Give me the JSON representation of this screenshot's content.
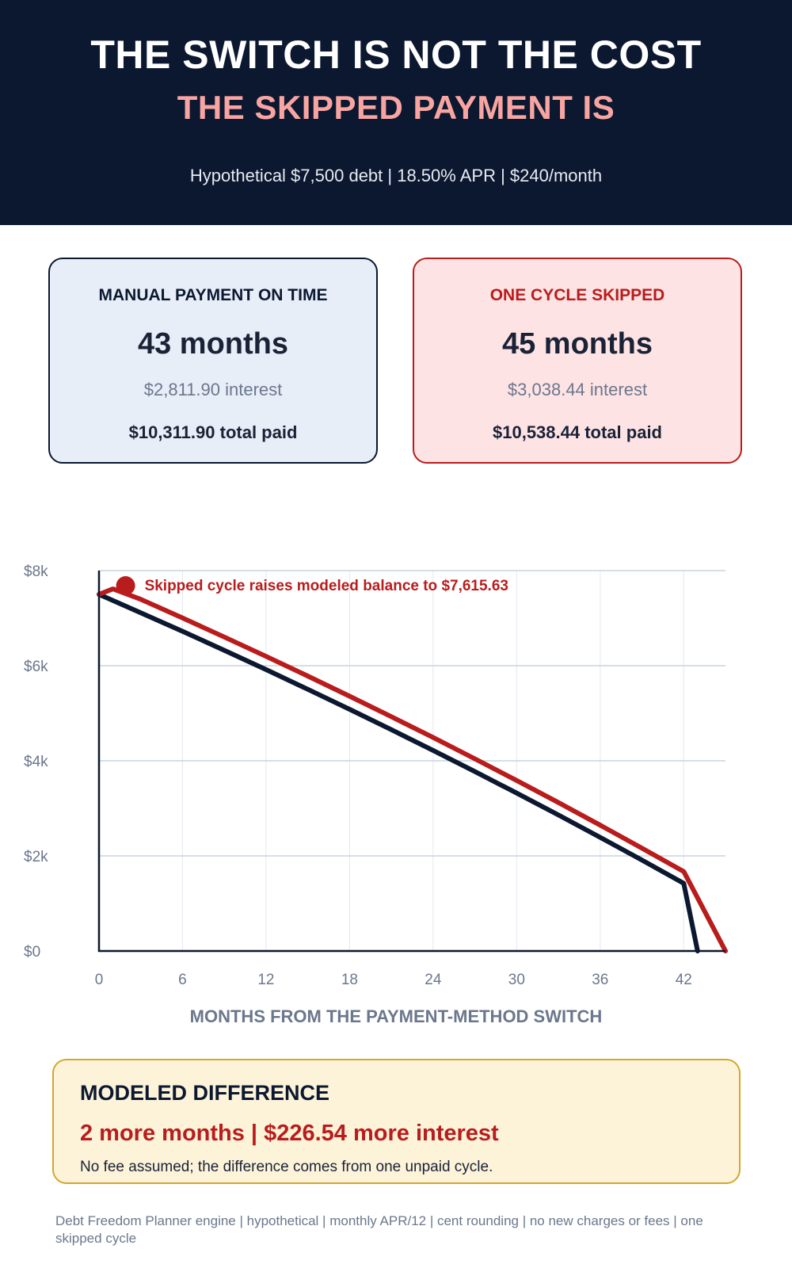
{
  "header": {
    "title": "THE SWITCH IS NOT THE COST",
    "subtitle": "THE SKIPPED PAYMENT IS",
    "assumptions": "Hypothetical $7,500 debt  |  18.50% APR  |  $240/month"
  },
  "cards": {
    "manual": {
      "label": "MANUAL PAYMENT ON TIME",
      "months": "43 months",
      "interest": "$2,811.90 interest",
      "total": "$10,311.90 total paid"
    },
    "skipped": {
      "label": "ONE CYCLE SKIPPED",
      "months": "45 months",
      "interest": "$3,038.44 interest",
      "total": "$10,538.44 total paid"
    }
  },
  "chart_data": {
    "type": "line",
    "xlabel": "MONTHS FROM THE PAYMENT-METHOD SWITCH",
    "ylabel": "",
    "xlim": [
      0,
      45
    ],
    "ylim": [
      0,
      8000
    ],
    "x_ticks": [
      0,
      6,
      12,
      18,
      24,
      30,
      36,
      42
    ],
    "y_ticks": [
      {
        "value": 0,
        "label": "$0"
      },
      {
        "value": 2000,
        "label": "$2k"
      },
      {
        "value": 4000,
        "label": "$4k"
      },
      {
        "value": 6000,
        "label": "$6k"
      },
      {
        "value": 8000,
        "label": "$8k"
      }
    ],
    "grid": true,
    "series": [
      {
        "key": "manual",
        "color": "#0b1830",
        "x": [
          0,
          3,
          6,
          9,
          12,
          15,
          18,
          21,
          24,
          27,
          30,
          33,
          36,
          39,
          42,
          43
        ],
        "values": [
          7500,
          7114,
          6723,
          6323,
          5918,
          5504,
          5084,
          4655,
          4219,
          3774,
          3321,
          2860,
          2390,
          1912,
          1424,
          0
        ]
      },
      {
        "key": "skipped",
        "color": "#b91c1c",
        "x": [
          0,
          1,
          3,
          6,
          9,
          12,
          15,
          18,
          21,
          24,
          27,
          30,
          33,
          36,
          39,
          42,
          45
        ],
        "values": [
          7500,
          7615.63,
          7396,
          7003,
          6603,
          6196,
          5782,
          5359,
          4929,
          4490,
          4042,
          3586,
          3121,
          2647,
          2164,
          1672,
          0
        ]
      }
    ],
    "annotation": {
      "text": "Skipped cycle raises modeled balance to $7,615.63",
      "x": 1,
      "y": 7615.63,
      "color": "#b91c1c"
    }
  },
  "summary": {
    "title": "MODELED DIFFERENCE",
    "difference": "2 more months  |  $226.54 more interest",
    "note": "No fee assumed; the difference comes from one unpaid cycle."
  },
  "footnote": "Debt Freedom Planner engine | hypothetical | monthly APR/12 | cent rounding | no new charges or fees | one skipped cycle"
}
